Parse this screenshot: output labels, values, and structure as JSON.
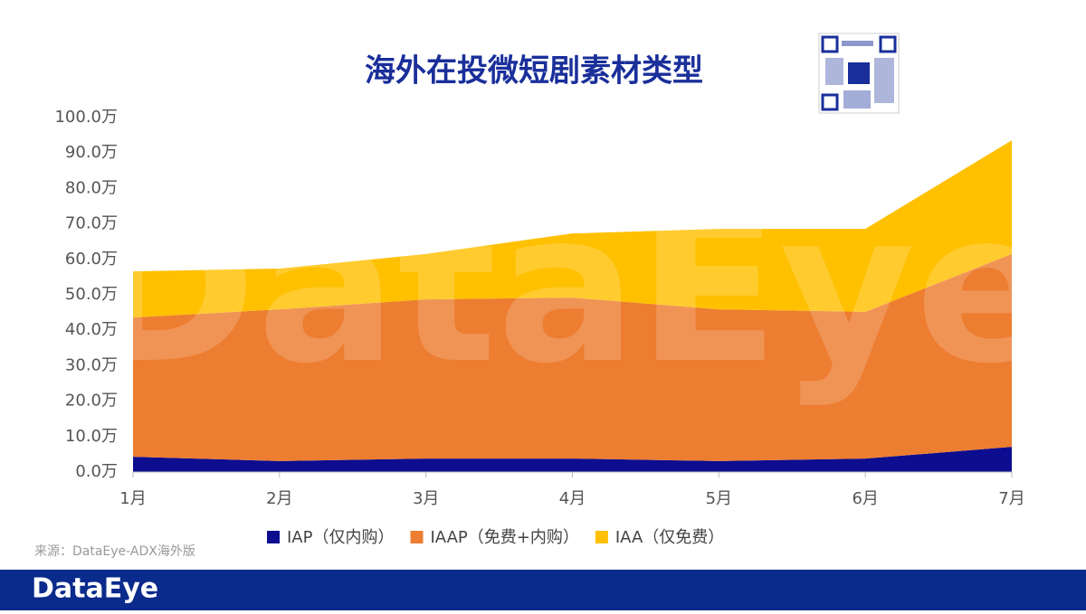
{
  "chart_data": {
    "type": "stacked-area",
    "title": "海外在投微短剧素材类型",
    "categories": [
      "1月",
      "2月",
      "3月",
      "4月",
      "5月",
      "6月",
      "7月"
    ],
    "series": [
      {
        "name": "IAP（仅内购）",
        "color": "#0d0d8f",
        "values": [
          4.3,
          3.1,
          3.8,
          3.8,
          3.1,
          3.8,
          7.1
        ]
      },
      {
        "name": "IAAP（免费+内购）",
        "color": "#ed7d31",
        "values": [
          39.3,
          42.8,
          44.9,
          45.4,
          42.8,
          41.4,
          54.4
        ]
      },
      {
        "name": "IAA（仅免费）",
        "color": "#ffc000",
        "values": [
          13.0,
          11.5,
          12.8,
          18.1,
          22.7,
          23.4,
          32.1
        ]
      }
    ],
    "ylim": [
      0,
      100
    ],
    "yticks": [
      {
        "value": 0,
        "label": "0.0万"
      },
      {
        "value": 10,
        "label": "10.0万"
      },
      {
        "value": 20,
        "label": "20.0万"
      },
      {
        "value": 30,
        "label": "30.0万"
      },
      {
        "value": 40,
        "label": "40.0万"
      },
      {
        "value": 50,
        "label": "50.0万"
      },
      {
        "value": 60,
        "label": "60.0万"
      },
      {
        "value": 70,
        "label": "70.0万"
      },
      {
        "value": 80,
        "label": "80.0万"
      },
      {
        "value": 90,
        "label": "90.0万"
      },
      {
        "value": 100,
        "label": "100.0万"
      }
    ],
    "grid": false,
    "legend": "bottom"
  },
  "source": "来源：DataEye-ADX海外版",
  "watermark": "DataEye",
  "brand": "DataEye"
}
